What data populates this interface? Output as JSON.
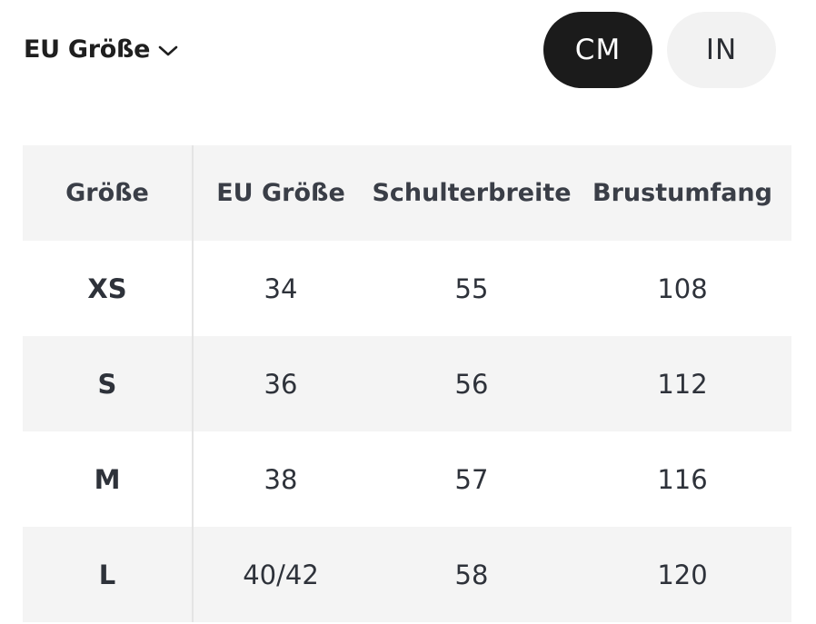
{
  "size_system": {
    "label": "EU Größe",
    "icon": "chevron-down-icon"
  },
  "unit_toggle": {
    "options": [
      "CM",
      "IN"
    ],
    "selected": "CM"
  },
  "colors": {
    "active_toggle_bg": "#1b1b1b",
    "inactive_toggle_bg": "#f2f2f2",
    "shaded_row_bg": "#f4f4f4",
    "text": "#2e323a"
  },
  "table": {
    "headers": [
      "Größe",
      "EU Größe",
      "Schulterbreite",
      "Brustumfang"
    ],
    "rows": [
      [
        "XS",
        "34",
        "55",
        "108"
      ],
      [
        "S",
        "36",
        "56",
        "112"
      ],
      [
        "M",
        "38",
        "57",
        "116"
      ],
      [
        "L",
        "40/42",
        "58",
        "120"
      ]
    ]
  }
}
